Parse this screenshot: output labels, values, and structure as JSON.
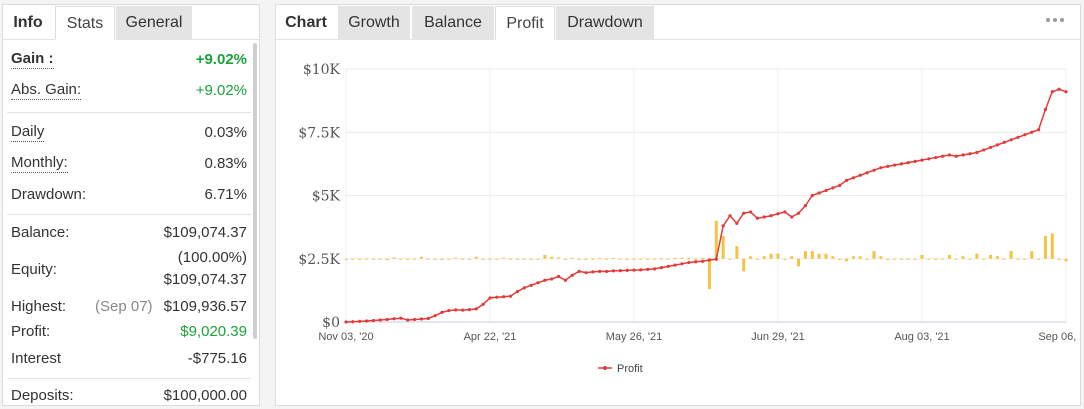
{
  "left_tabs": [
    {
      "label": "Info",
      "name": "tab-info"
    },
    {
      "label": "Stats",
      "name": "tab-stats"
    },
    {
      "label": "General",
      "name": "tab-general"
    }
  ],
  "stats": {
    "gain": {
      "label": "Gain :",
      "value": "+9.02%"
    },
    "abs_gain": {
      "label": "Abs. Gain:",
      "value": "+9.02%"
    },
    "daily": {
      "label": "Daily",
      "value": "0.03%"
    },
    "monthly": {
      "label": "Monthly:",
      "value": "0.83%"
    },
    "drawdown": {
      "label": "Drawdown:",
      "value": "6.71%"
    },
    "balance": {
      "label": "Balance:",
      "value": "$109,074.37"
    },
    "equity": {
      "label": "Equity:",
      "value_line1": "(100.00%)",
      "value_line2": "$109,074.37"
    },
    "highest": {
      "label": "Highest:",
      "date": "(Sep 07)",
      "value": "$109,936.57"
    },
    "profit": {
      "label": "Profit:",
      "value": "$9,020.39"
    },
    "interest": {
      "label": "Interest",
      "value": "-$775.16"
    },
    "deposits": {
      "label": "Deposits:",
      "value": "$100,000.00"
    }
  },
  "right_tabs": [
    {
      "label": "Chart",
      "name": "tab-chart"
    },
    {
      "label": "Growth",
      "name": "tab-growth"
    },
    {
      "label": "Balance",
      "name": "tab-balance"
    },
    {
      "label": "Profit",
      "name": "tab-profit"
    },
    {
      "label": "Drawdown",
      "name": "tab-drawdown"
    }
  ],
  "colors": {
    "profit_line": "#e23b3b",
    "bars": "#f5c242",
    "gain_green": "#1aa33a"
  },
  "chart_data": {
    "type": "line",
    "y_ticks": [
      "$0",
      "$2.5K",
      "$5K",
      "$7.5K",
      "$10K"
    ],
    "ylim": [
      0,
      10000
    ],
    "x_ticks": [
      "Nov 03, '20",
      "Apr 22, '21",
      "May 26, '21",
      "Jun 29, '21",
      "Aug 03, '21",
      "Sep 06, '21"
    ],
    "legend": "Profit",
    "grid": true,
    "series": [
      {
        "name": "Profit",
        "values": [
          0,
          10,
          25,
          40,
          60,
          80,
          100,
          130,
          150,
          80,
          100,
          120,
          140,
          250,
          380,
          450,
          480,
          470,
          490,
          520,
          700,
          950,
          980,
          1000,
          1020,
          1200,
          1350,
          1450,
          1550,
          1650,
          1700,
          1800,
          1650,
          1850,
          2000,
          1950,
          1980,
          2000,
          2000,
          2020,
          2030,
          2040,
          2050,
          2060,
          2080,
          2100,
          2150,
          2200,
          2250,
          2300,
          2350,
          2380,
          2400,
          2450,
          2480,
          3800,
          4200,
          3900,
          4300,
          4350,
          4100,
          4150,
          4200,
          4280,
          4350,
          4150,
          4300,
          4600,
          5000,
          5100,
          5200,
          5300,
          5400,
          5600,
          5700,
          5800,
          5900,
          6000,
          6100,
          6150,
          6200,
          6250,
          6300,
          6350,
          6400,
          6450,
          6500,
          6550,
          6600,
          6550,
          6600,
          6650,
          6700,
          6800,
          6900,
          7000,
          7100,
          7200,
          7300,
          7400,
          7500,
          7600,
          8400,
          9100,
          9200,
          9100
        ]
      }
    ],
    "bars": [
      0,
      0,
      0,
      0,
      0,
      0,
      -50,
      50,
      0,
      0,
      0,
      80,
      0,
      0,
      -50,
      0,
      40,
      0,
      0,
      80,
      0,
      0,
      0,
      40,
      0,
      0,
      0,
      -30,
      0,
      150,
      80,
      50,
      0,
      40,
      -40,
      -40,
      0,
      30,
      0,
      30,
      0,
      0,
      0,
      -20,
      0,
      0,
      20,
      0,
      30,
      40,
      30,
      0,
      30,
      -1200,
      1500,
      900,
      0,
      500,
      -500,
      100,
      0,
      100,
      200,
      200,
      0,
      100,
      -300,
      300,
      300,
      200,
      200,
      100,
      0,
      -100,
      100,
      100,
      0,
      300,
      100,
      0,
      0,
      0,
      0,
      0,
      150,
      0,
      0,
      0,
      150,
      0,
      100,
      0,
      200,
      0,
      150,
      100,
      0,
      300,
      0,
      0,
      300,
      0,
      900,
      1000,
      0,
      -100
    ]
  }
}
